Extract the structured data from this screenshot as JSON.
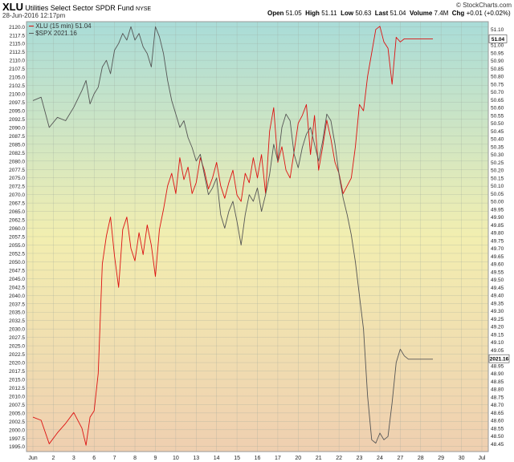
{
  "header": {
    "symbol": "XLU",
    "fund_name": "Utilities Select Sector SPDR Fund",
    "exchange": "NYSE",
    "date": "28-Jun-2016 12:17pm",
    "brand": "© StockCharts.com",
    "open_label": "Open",
    "open": "51.05",
    "high_label": "High",
    "high": "51.11",
    "low_label": "Low",
    "low": "50.63",
    "last_label": "Last",
    "last": "51.04",
    "volume_label": "Volume",
    "volume": "7.4M",
    "chg_label": "Chg",
    "chg": "+0.01 (+0.02%)"
  },
  "legend": {
    "xlu": "XLU (15 min) 51.04",
    "spx": "$SPX 2021.16"
  },
  "colors": {
    "xlu": "#dd1111",
    "spx": "#555555",
    "bg_top": "#a9dcd8",
    "bg_mid": "#f2eeb0",
    "bg_bottom": "#efcfb0"
  },
  "chart_data": {
    "type": "line",
    "x_labels": [
      "Jun",
      "2",
      "3",
      "6",
      "7",
      "8",
      "9",
      "10",
      "13",
      "14",
      "15",
      "16",
      "17",
      "20",
      "21",
      "22",
      "23",
      "24",
      "27",
      "28",
      "29",
      "30",
      "Jul"
    ],
    "left_axis": {
      "min": 1993.5,
      "max": 2121.5,
      "ticks": [
        "2120.0",
        "2117.5",
        "2115.0",
        "2112.5",
        "2110.0",
        "2107.5",
        "2105.0",
        "2102.5",
        "2100.0",
        "2097.5",
        "2095.0",
        "2092.5",
        "2090.0",
        "2087.5",
        "2085.0",
        "2082.5",
        "2080.0",
        "2077.5",
        "2075.0",
        "2072.5",
        "2070.0",
        "2067.5",
        "2065.0",
        "2062.5",
        "2060.0",
        "2057.5",
        "2055.0",
        "2052.5",
        "2050.0",
        "2047.5",
        "2045.0",
        "2042.5",
        "2040.0",
        "2037.5",
        "2035.0",
        "2032.5",
        "2030.0",
        "2027.5",
        "2025.0",
        "2022.5",
        "2020.0",
        "2017.5",
        "2015.0",
        "2012.5",
        "2010.0",
        "2007.5",
        "2005.0",
        "2002.5",
        "2000.0",
        "1997.5",
        "1995.0"
      ]
    },
    "right_axis": {
      "min": 48.4,
      "max": 51.15,
      "ticks": [
        "51.10",
        "51.05",
        "51.00",
        "50.95",
        "50.90",
        "50.85",
        "50.80",
        "50.75",
        "50.70",
        "50.65",
        "50.60",
        "50.55",
        "50.50",
        "50.45",
        "50.40",
        "50.35",
        "50.30",
        "50.25",
        "50.20",
        "50.15",
        "50.10",
        "50.05",
        "50.00",
        "49.95",
        "49.90",
        "49.85",
        "49.80",
        "49.75",
        "49.70",
        "49.65",
        "49.60",
        "49.55",
        "49.50",
        "49.45",
        "49.40",
        "49.35",
        "49.30",
        "49.25",
        "49.20",
        "49.15",
        "49.10",
        "49.05",
        "49.00",
        "48.95",
        "48.90",
        "48.85",
        "48.80",
        "48.75",
        "48.70",
        "48.65",
        "48.60",
        "48.55",
        "48.50",
        "48.45"
      ]
    },
    "last_tag_right": "51.04",
    "last_tag_left": "2021.16",
    "grid": true,
    "series": [
      {
        "name": "XLU (15 min) 51.04",
        "axis": "right",
        "color": "#dd1111",
        "x": [
          0,
          0.4,
          0.8,
          1.2,
          1.6,
          2.0,
          2.4,
          2.6,
          2.8,
          3.0,
          3.2,
          3.4,
          3.6,
          3.8,
          4.0,
          4.2,
          4.4,
          4.6,
          4.8,
          5.0,
          5.2,
          5.4,
          5.6,
          5.8,
          6.0,
          6.2,
          6.4,
          6.6,
          6.8,
          7.0,
          7.2,
          7.4,
          7.6,
          7.8,
          8.0,
          8.2,
          8.4,
          8.6,
          8.8,
          9.0,
          9.2,
          9.4,
          9.6,
          9.8,
          10.0,
          10.2,
          10.4,
          10.6,
          10.8,
          11.0,
          11.2,
          11.4,
          11.6,
          11.8,
          12.0,
          12.2,
          12.4,
          12.6,
          12.8,
          13.0,
          13.2,
          13.4,
          13.6,
          13.8,
          14.0,
          14.2,
          14.4,
          14.6,
          14.8,
          15.0,
          15.2,
          15.4,
          15.6,
          15.8,
          16.0,
          16.2,
          16.4,
          16.6,
          16.8,
          17.0,
          17.2,
          17.4,
          17.6,
          17.8,
          18.0,
          18.2,
          18.4,
          18.6,
          18.8,
          19.0,
          19.2,
          19.4,
          19.6
        ],
        "values": [
          48.62,
          48.6,
          48.45,
          48.52,
          48.58,
          48.65,
          48.55,
          48.44,
          48.62,
          48.66,
          48.9,
          49.6,
          49.78,
          49.9,
          49.65,
          49.45,
          49.82,
          49.9,
          49.7,
          49.62,
          49.8,
          49.66,
          49.85,
          49.72,
          49.52,
          49.82,
          49.95,
          50.1,
          50.18,
          50.05,
          50.28,
          50.14,
          50.22,
          50.05,
          50.12,
          50.28,
          50.2,
          50.08,
          50.15,
          50.25,
          50.1,
          50.02,
          50.12,
          50.2,
          50.04,
          50.0,
          50.18,
          50.12,
          50.28,
          50.15,
          50.3,
          50.05,
          50.45,
          50.6,
          50.25,
          50.35,
          50.2,
          50.15,
          50.32,
          50.5,
          50.55,
          50.62,
          50.3,
          50.55,
          50.2,
          50.35,
          50.52,
          50.4,
          50.25,
          50.18,
          50.05,
          50.1,
          50.15,
          50.35,
          50.62,
          50.58,
          50.8,
          50.95,
          51.1,
          51.12,
          51.02,
          50.98,
          50.75,
          51.05,
          51.02,
          51.04,
          51.04,
          51.04,
          51.04,
          51.04,
          51.04,
          51.04,
          51.04
        ]
      },
      {
        "name": "$SPX 2021.16",
        "axis": "left",
        "color": "#555555",
        "x": [
          0,
          0.4,
          0.8,
          1.2,
          1.6,
          2.0,
          2.4,
          2.6,
          2.8,
          3.0,
          3.2,
          3.4,
          3.6,
          3.8,
          4.0,
          4.2,
          4.4,
          4.6,
          4.8,
          5.0,
          5.2,
          5.4,
          5.6,
          5.8,
          6.0,
          6.2,
          6.4,
          6.6,
          6.8,
          7.0,
          7.2,
          7.4,
          7.6,
          7.8,
          8.0,
          8.2,
          8.4,
          8.6,
          8.8,
          9.0,
          9.2,
          9.4,
          9.6,
          9.8,
          10.0,
          10.2,
          10.4,
          10.6,
          10.8,
          11.0,
          11.2,
          11.4,
          11.6,
          11.8,
          12.0,
          12.2,
          12.4,
          12.6,
          12.8,
          13.0,
          13.2,
          13.4,
          13.6,
          13.8,
          14.0,
          14.2,
          14.4,
          14.6,
          14.8,
          15.0,
          15.2,
          15.4,
          15.6,
          15.8,
          16.0,
          16.2,
          16.4,
          16.6,
          16.8,
          17.0,
          17.2,
          17.4,
          17.6,
          17.8,
          18.0,
          18.2,
          18.4,
          18.6,
          18.8,
          19.0,
          19.2,
          19.4,
          19.6
        ],
        "values": [
          2098,
          2099,
          2090,
          2093,
          2092,
          2096,
          2101,
          2104,
          2097,
          2100,
          2102,
          2108,
          2110,
          2106,
          2113,
          2115,
          2118,
          2116,
          2120,
          2116,
          2118,
          2114,
          2112,
          2108,
          2120,
          2117,
          2112,
          2104,
          2098,
          2094,
          2090,
          2092,
          2087,
          2084,
          2080,
          2082,
          2076,
          2070,
          2072,
          2075,
          2064,
          2060,
          2065,
          2068,
          2062,
          2055,
          2064,
          2070,
          2068,
          2072,
          2065,
          2070,
          2076,
          2085,
          2080,
          2090,
          2094,
          2092,
          2082,
          2078,
          2084,
          2088,
          2090,
          2085,
          2080,
          2086,
          2094,
          2092,
          2085,
          2076,
          2069,
          2064,
          2058,
          2050,
          2040,
          2030,
          2010,
          1997,
          1996,
          1999,
          1997,
          1998,
          2008,
          2020,
          2024,
          2022,
          2021,
          2021,
          2021,
          2021,
          2021,
          2021,
          2021
        ]
      }
    ]
  }
}
